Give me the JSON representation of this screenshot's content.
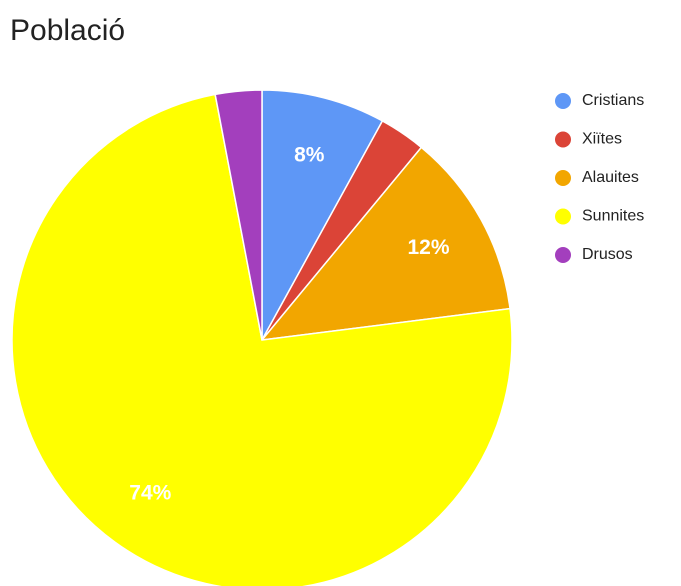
{
  "chart_data": {
    "type": "pie",
    "title": "Població",
    "categories": [
      "Cristians",
      "Xiïtes",
      "Alauites",
      "Sunnites",
      "Drusos"
    ],
    "values": [
      8,
      3,
      12,
      74,
      3
    ],
    "value_labels": [
      "8%",
      null,
      "12%",
      "74%",
      null
    ],
    "colors": [
      "#5e97f6",
      "#db4437",
      "#f2a600",
      "#ffff00",
      "#a33fbd"
    ],
    "legend": "right"
  }
}
